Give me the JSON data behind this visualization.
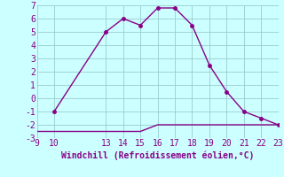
{
  "line1_x": [
    10,
    13,
    14,
    15,
    16,
    17,
    18,
    19,
    20,
    21,
    22,
    23
  ],
  "line1_y": [
    -1,
    5,
    6,
    5.5,
    6.8,
    6.8,
    5.5,
    2.5,
    0.5,
    -1,
    -1.5,
    -2
  ],
  "line2_x": [
    9,
    10,
    11,
    12,
    13,
    14,
    15,
    16,
    17,
    18,
    19,
    20,
    21,
    22,
    23
  ],
  "line2_y": [
    -2.5,
    -2.5,
    -2.5,
    -2.5,
    -2.5,
    -2.5,
    -2.5,
    -2.0,
    -2.0,
    -2.0,
    -2.0,
    -2.0,
    -2.0,
    -2.0,
    -2.0
  ],
  "color": "#880088",
  "background_color": "#ccffff",
  "grid_color": "#99cccc",
  "xlabel": "Windchill (Refroidissement éolien,°C)",
  "xlim": [
    9,
    23
  ],
  "ylim": [
    -3,
    7
  ],
  "xticks": [
    9,
    10,
    13,
    14,
    15,
    16,
    17,
    18,
    19,
    20,
    21,
    22,
    23
  ],
  "yticks": [
    -3,
    -2,
    -1,
    0,
    1,
    2,
    3,
    4,
    5,
    6,
    7
  ],
  "xtick_labels": [
    "9",
    "10",
    "13",
    "14",
    "15",
    "16",
    "17",
    "18",
    "19",
    "20",
    "21",
    "22",
    "23"
  ],
  "marker": "o",
  "marker_size": 2.5,
  "linewidth": 1.0,
  "tick_fontsize": 7,
  "xlabel_fontsize": 7
}
